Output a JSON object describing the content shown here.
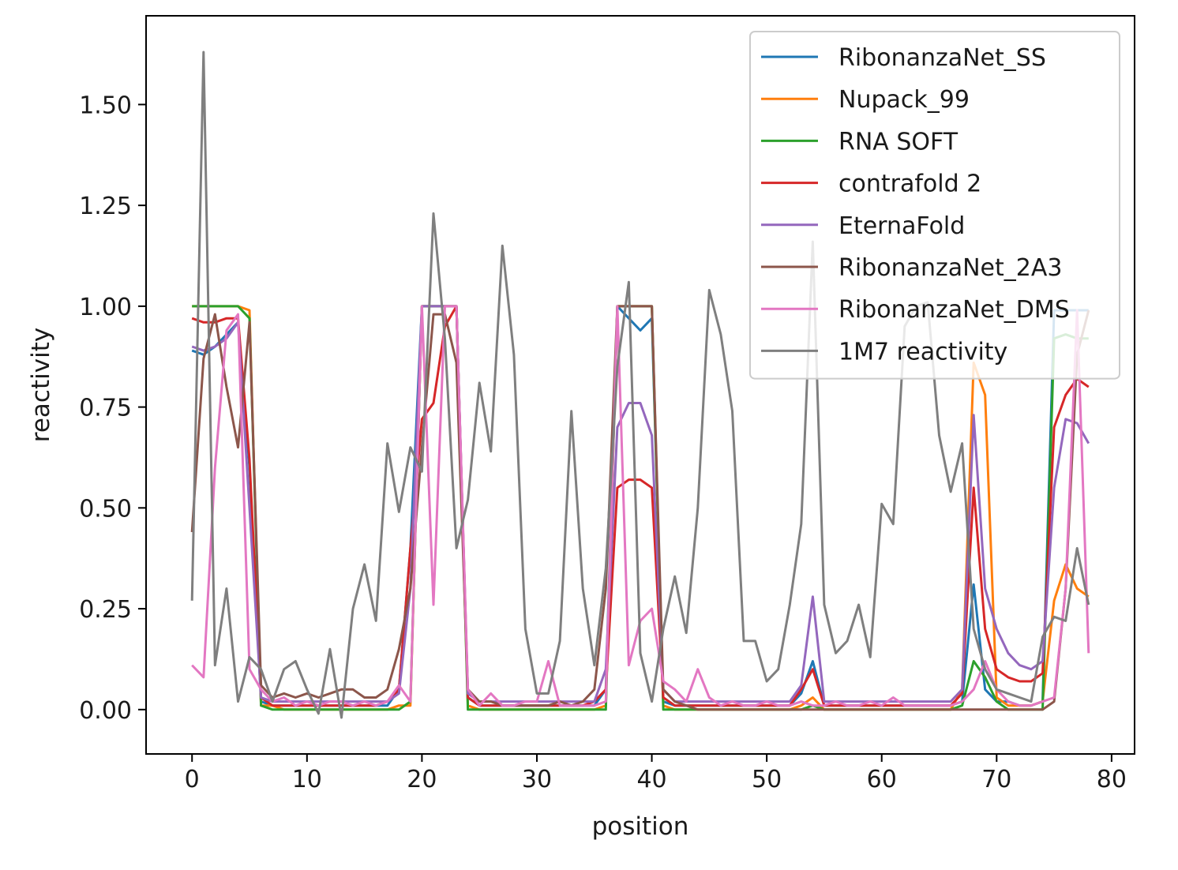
{
  "chart_data": {
    "type": "line",
    "title": "",
    "xlabel": "position",
    "ylabel": "reactivity",
    "xlim": [
      -4,
      82
    ],
    "ylim": [
      -0.11,
      1.72
    ],
    "xticks": [
      0,
      10,
      20,
      30,
      40,
      50,
      60,
      70,
      80
    ],
    "yticks": [
      0.0,
      0.25,
      0.5,
      0.75,
      1.0,
      1.25,
      1.5
    ],
    "ytick_labels": [
      "0.00",
      "0.25",
      "0.50",
      "0.75",
      "1.00",
      "1.25",
      "1.50"
    ],
    "grid": false,
    "legend_position": "top-right",
    "x_start": 0,
    "series": [
      {
        "name": "RibonanzaNet_SS",
        "color": "#1f77b4",
        "values": [
          0.89,
          0.88,
          0.9,
          0.93,
          0.96,
          0.6,
          0.02,
          0.01,
          0.01,
          0.01,
          0.01,
          0.01,
          0.01,
          0.01,
          0.01,
          0.01,
          0.01,
          0.01,
          0.05,
          0.4,
          1.0,
          1.0,
          1.0,
          1.0,
          0.03,
          0.01,
          0.01,
          0.01,
          0.01,
          0.01,
          0.01,
          0.01,
          0.01,
          0.01,
          0.01,
          0.01,
          0.05,
          1.0,
          0.97,
          0.94,
          0.97,
          0.02,
          0.01,
          0.01,
          0.01,
          0.01,
          0.01,
          0.01,
          0.01,
          0.01,
          0.01,
          0.01,
          0.01,
          0.04,
          0.12,
          0.01,
          0.01,
          0.01,
          0.01,
          0.01,
          0.01,
          0.01,
          0.01,
          0.01,
          0.01,
          0.01,
          0.01,
          0.02,
          0.31,
          0.05,
          0.02,
          0.02,
          0.01,
          0.01,
          0.02,
          0.99,
          0.99,
          0.99,
          0.99
        ]
      },
      {
        "name": "Nupack_99",
        "color": "#ff7f0e",
        "values": [
          1.0,
          1.0,
          1.0,
          1.0,
          1.0,
          0.99,
          0.01,
          0.01,
          0.0,
          0.0,
          0.0,
          0.0,
          0.0,
          0.0,
          0.0,
          0.0,
          0.0,
          0.0,
          0.01,
          0.01,
          1.0,
          1.0,
          1.0,
          1.0,
          0.01,
          0.0,
          0.0,
          0.0,
          0.0,
          0.0,
          0.0,
          0.0,
          0.0,
          0.0,
          0.0,
          0.0,
          0.01,
          1.0,
          1.0,
          1.0,
          1.0,
          0.01,
          0.0,
          0.0,
          0.0,
          0.0,
          0.0,
          0.0,
          0.0,
          0.0,
          0.0,
          0.0,
          0.0,
          0.01,
          0.03,
          0.0,
          0.0,
          0.0,
          0.0,
          0.0,
          0.0,
          0.0,
          0.0,
          0.0,
          0.0,
          0.0,
          0.0,
          0.05,
          0.86,
          0.78,
          0.03,
          0.01,
          0.01,
          0.01,
          0.02,
          0.27,
          0.36,
          0.3,
          0.28
        ]
      },
      {
        "name": "RNA SOFT",
        "color": "#2ca02c",
        "values": [
          1.0,
          1.0,
          1.0,
          1.0,
          1.0,
          0.97,
          0.01,
          0.0,
          0.0,
          0.0,
          0.0,
          0.0,
          0.0,
          0.0,
          0.0,
          0.0,
          0.0,
          0.0,
          0.0,
          0.02,
          1.0,
          1.0,
          1.0,
          1.0,
          0.0,
          0.0,
          0.0,
          0.0,
          0.0,
          0.0,
          0.0,
          0.0,
          0.0,
          0.0,
          0.0,
          0.0,
          0.0,
          1.0,
          1.0,
          1.0,
          1.0,
          0.0,
          0.0,
          0.0,
          0.0,
          0.0,
          0.0,
          0.0,
          0.0,
          0.0,
          0.0,
          0.0,
          0.0,
          0.0,
          0.01,
          0.0,
          0.0,
          0.0,
          0.0,
          0.0,
          0.0,
          0.0,
          0.0,
          0.0,
          0.0,
          0.0,
          0.0,
          0.01,
          0.12,
          0.08,
          0.02,
          0.0,
          0.0,
          0.0,
          0.0,
          0.92,
          0.93,
          0.92,
          0.92
        ]
      },
      {
        "name": "contrafold 2",
        "color": "#d62728",
        "values": [
          0.97,
          0.96,
          0.96,
          0.97,
          0.97,
          0.62,
          0.03,
          0.01,
          0.01,
          0.01,
          0.01,
          0.01,
          0.01,
          0.01,
          0.01,
          0.01,
          0.01,
          0.02,
          0.05,
          0.4,
          0.72,
          0.76,
          0.95,
          1.0,
          0.03,
          0.01,
          0.01,
          0.01,
          0.01,
          0.01,
          0.01,
          0.01,
          0.01,
          0.01,
          0.01,
          0.02,
          0.05,
          0.55,
          0.57,
          0.57,
          0.55,
          0.03,
          0.01,
          0.01,
          0.01,
          0.01,
          0.01,
          0.01,
          0.01,
          0.01,
          0.01,
          0.01,
          0.01,
          0.05,
          0.1,
          0.01,
          0.01,
          0.01,
          0.01,
          0.01,
          0.01,
          0.01,
          0.01,
          0.01,
          0.01,
          0.01,
          0.01,
          0.04,
          0.55,
          0.2,
          0.1,
          0.08,
          0.07,
          0.07,
          0.09,
          0.7,
          0.78,
          0.82,
          0.8
        ]
      },
      {
        "name": "EternaFold",
        "color": "#9467bd",
        "values": [
          0.9,
          0.89,
          0.9,
          0.92,
          0.96,
          0.5,
          0.03,
          0.02,
          0.02,
          0.02,
          0.02,
          0.02,
          0.02,
          0.02,
          0.02,
          0.02,
          0.02,
          0.02,
          0.04,
          0.3,
          1.0,
          1.0,
          1.0,
          1.0,
          0.04,
          0.02,
          0.02,
          0.02,
          0.02,
          0.02,
          0.02,
          0.02,
          0.02,
          0.02,
          0.02,
          0.02,
          0.1,
          0.7,
          0.76,
          0.76,
          0.68,
          0.05,
          0.02,
          0.02,
          0.02,
          0.02,
          0.02,
          0.02,
          0.02,
          0.02,
          0.02,
          0.02,
          0.02,
          0.06,
          0.28,
          0.02,
          0.02,
          0.02,
          0.02,
          0.02,
          0.02,
          0.02,
          0.02,
          0.02,
          0.02,
          0.02,
          0.02,
          0.05,
          0.73,
          0.3,
          0.2,
          0.14,
          0.11,
          0.1,
          0.12,
          0.55,
          0.72,
          0.71,
          0.66
        ]
      },
      {
        "name": "RibonanzaNet_2A3",
        "color": "#8c564b",
        "values": [
          0.44,
          0.87,
          0.98,
          0.8,
          0.65,
          0.96,
          0.06,
          0.03,
          0.04,
          0.03,
          0.04,
          0.03,
          0.04,
          0.05,
          0.05,
          0.03,
          0.03,
          0.05,
          0.15,
          0.3,
          0.65,
          0.98,
          0.98,
          0.86,
          0.05,
          0.02,
          0.02,
          0.01,
          0.01,
          0.01,
          0.01,
          0.01,
          0.02,
          0.01,
          0.02,
          0.05,
          0.3,
          1.0,
          1.0,
          1.0,
          1.0,
          0.05,
          0.02,
          0.01,
          0.0,
          0.0,
          0.0,
          0.0,
          0.0,
          0.0,
          0.0,
          0.0,
          0.0,
          0.0,
          0.0,
          0.0,
          0.0,
          0.0,
          0.0,
          0.0,
          0.0,
          0.0,
          0.0,
          0.0,
          0.0,
          0.0,
          0.0,
          0.0,
          0.0,
          0.0,
          0.0,
          0.0,
          0.0,
          0.0,
          0.0,
          0.02,
          0.3,
          0.88,
          0.99
        ]
      },
      {
        "name": "RibonanzaNet_DMS",
        "color": "#e377c2",
        "values": [
          0.11,
          0.08,
          0.6,
          0.94,
          0.98,
          0.1,
          0.05,
          0.02,
          0.03,
          0.01,
          0.02,
          0.01,
          0.02,
          0.02,
          0.01,
          0.02,
          0.01,
          0.02,
          0.06,
          0.02,
          1.0,
          0.26,
          1.0,
          1.0,
          0.05,
          0.01,
          0.04,
          0.01,
          0.01,
          0.02,
          0.02,
          0.12,
          0.01,
          0.01,
          0.01,
          0.01,
          0.02,
          1.0,
          0.11,
          0.22,
          0.25,
          0.07,
          0.05,
          0.02,
          0.1,
          0.03,
          0.01,
          0.02,
          0.01,
          0.01,
          0.02,
          0.01,
          0.01,
          0.02,
          0.01,
          0.01,
          0.02,
          0.01,
          0.01,
          0.02,
          0.01,
          0.03,
          0.01,
          0.01,
          0.01,
          0.01,
          0.01,
          0.02,
          0.05,
          0.12,
          0.05,
          0.02,
          0.01,
          0.01,
          0.02,
          0.03,
          0.3,
          0.99,
          0.14
        ]
      },
      {
        "name": "1M7 reactivity",
        "color": "#7f7f7f",
        "values": [
          0.27,
          1.63,
          0.11,
          0.3,
          0.02,
          0.13,
          0.1,
          0.02,
          0.1,
          0.12,
          0.05,
          -0.01,
          0.15,
          -0.02,
          0.25,
          0.36,
          0.22,
          0.66,
          0.49,
          0.65,
          0.59,
          1.23,
          0.92,
          0.4,
          0.52,
          0.81,
          0.64,
          1.15,
          0.88,
          0.2,
          0.04,
          0.04,
          0.17,
          0.74,
          0.3,
          0.11,
          0.35,
          0.85,
          1.06,
          0.14,
          0.02,
          0.2,
          0.33,
          0.19,
          0.5,
          1.04,
          0.93,
          0.74,
          0.17,
          0.17,
          0.07,
          0.1,
          0.26,
          0.46,
          1.16,
          0.26,
          0.14,
          0.17,
          0.26,
          0.13,
          0.51,
          0.46,
          0.95,
          1.0,
          1.01,
          0.68,
          0.54,
          0.66,
          0.2,
          0.1,
          0.05,
          0.04,
          0.03,
          0.02,
          0.18,
          0.23,
          0.22,
          0.4,
          0.26
        ]
      }
    ]
  }
}
